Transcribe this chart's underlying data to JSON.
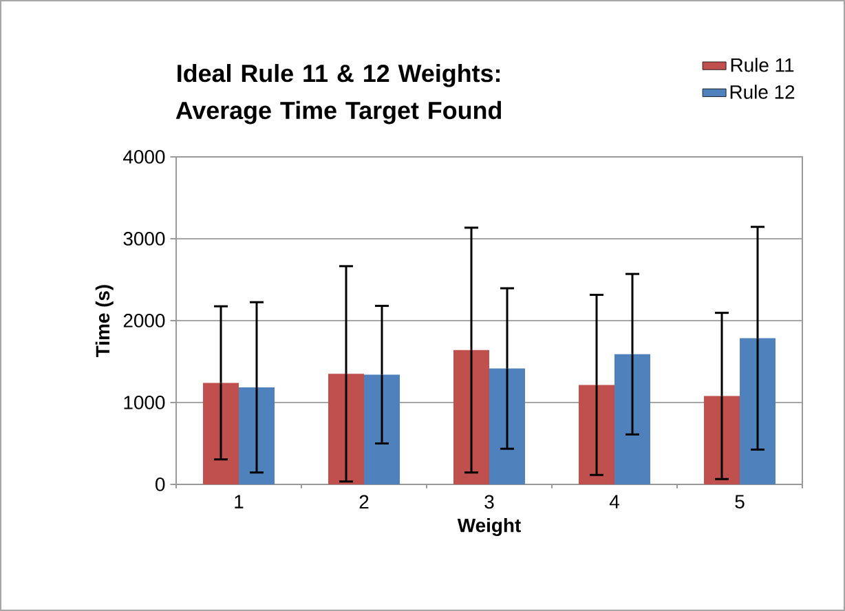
{
  "chart_data": {
    "type": "bar",
    "title": "Ideal Rule 11 & 12 Weights: Average Time Target Found",
    "xlabel": "Weight",
    "ylabel": "Time (s)",
    "categories": [
      "1",
      "2",
      "3",
      "4",
      "5"
    ],
    "series": [
      {
        "name": "Rule 11",
        "color": "#c0504d",
        "values": [
          1240,
          1350,
          1640,
          1215,
          1080
        ],
        "errors": [
          935,
          1315,
          1495,
          1100,
          1015
        ]
      },
      {
        "name": "Rule 12",
        "color": "#4f81bd",
        "values": [
          1185,
          1340,
          1415,
          1590,
          1785
        ],
        "errors": [
          1040,
          840,
          980,
          980,
          1360
        ]
      }
    ],
    "ylim": [
      0,
      4000
    ],
    "yticks": [
      0,
      1000,
      2000,
      3000,
      4000
    ],
    "grid": "y",
    "legend": "top right"
  }
}
